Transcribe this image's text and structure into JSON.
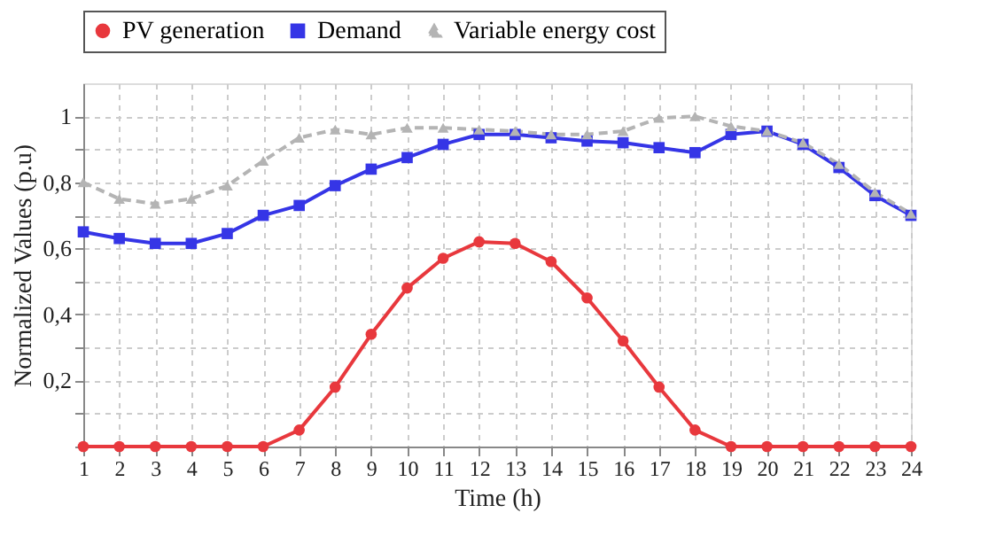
{
  "chart_data": {
    "type": "line",
    "xlabel": "Time (h)",
    "ylabel": "Normalized Values (p.u)",
    "x": [
      1,
      2,
      3,
      4,
      5,
      6,
      7,
      8,
      9,
      10,
      11,
      12,
      13,
      14,
      15,
      16,
      17,
      18,
      19,
      20,
      21,
      22,
      23,
      24
    ],
    "xlim": [
      1,
      24
    ],
    "xticks": [
      1,
      2,
      3,
      4,
      5,
      6,
      7,
      8,
      9,
      10,
      11,
      12,
      13,
      14,
      15,
      16,
      17,
      18,
      19,
      20,
      21,
      22,
      23,
      24
    ],
    "ylim": [
      0,
      1.1
    ],
    "yticks": [
      {
        "value": 0,
        "label": null
      },
      {
        "value": 0.1,
        "label": null
      },
      {
        "value": 0.2,
        "label": "0,2"
      },
      {
        "value": 0.3,
        "label": null
      },
      {
        "value": 0.4,
        "label": "0,4"
      },
      {
        "value": 0.5,
        "label": null
      },
      {
        "value": 0.6,
        "label": "0,6"
      },
      {
        "value": 0.7,
        "label": null
      },
      {
        "value": 0.8,
        "label": "0,8"
      },
      {
        "value": 0.9,
        "label": null
      },
      1
    ],
    "grid": true,
    "legend": "top",
    "series": [
      {
        "name": "PV generation",
        "color": "#e8383d",
        "marker": "circle",
        "line_style": "solid",
        "values": [
          0,
          0,
          0,
          0,
          0,
          0,
          0.05,
          0.18,
          0.34,
          0.48,
          0.57,
          0.62,
          0.615,
          0.56,
          0.45,
          0.32,
          0.18,
          0.05,
          0,
          0,
          0,
          0,
          0,
          0
        ]
      },
      {
        "name": "Demand",
        "color": "#3535e6",
        "marker": "square",
        "line_style": "solid",
        "values": [
          0.65,
          0.63,
          0.615,
          0.615,
          0.645,
          0.7,
          0.73,
          0.79,
          0.84,
          0.875,
          0.915,
          0.945,
          0.945,
          0.935,
          0.925,
          0.92,
          0.905,
          0.89,
          0.945,
          0.955,
          0.915,
          0.845,
          0.76,
          0.7
        ]
      },
      {
        "name": "Variable energy cost",
        "color": "#b4b4b4",
        "marker": "triangle",
        "line_style": "dashed",
        "values": [
          0.8,
          0.75,
          0.735,
          0.75,
          0.79,
          0.865,
          0.935,
          0.96,
          0.945,
          0.965,
          0.965,
          0.96,
          0.955,
          0.945,
          0.945,
          0.955,
          0.995,
          1.0,
          0.97,
          0.955,
          0.92,
          0.855,
          0.77,
          0.705
        ]
      }
    ]
  }
}
